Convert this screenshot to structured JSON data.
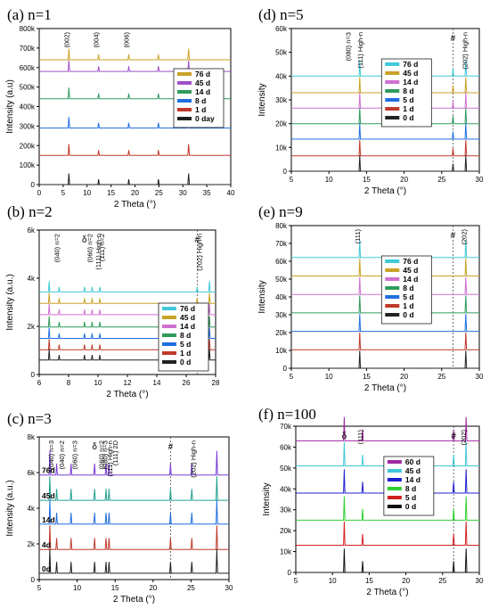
{
  "chart_data": [
    {
      "id": "a",
      "type": "line",
      "title": "(a) n=1",
      "xlabel": "2 Theta (°)",
      "ylabel": "Intensity (a.u)",
      "xlim": [
        0,
        40
      ],
      "ylim": [
        0,
        800000
      ],
      "xticks": [
        "0",
        "5",
        "10",
        "15",
        "20",
        "25",
        "30",
        "35",
        "40"
      ],
      "yticks": [
        "0",
        "100k",
        "200k",
        "300k",
        "400k",
        "500k",
        "600k",
        "700k",
        "800k"
      ],
      "peaks": [
        6.2,
        12.4,
        18.7,
        24.9,
        31.2
      ],
      "series": [
        {
          "name": "76 d",
          "color": "#c9a227",
          "baseline": 640000
        },
        {
          "name": "45 d",
          "color": "#a050c8",
          "baseline": 580000
        },
        {
          "name": "14 d",
          "color": "#2f9a5c",
          "baseline": 440000
        },
        {
          "name": "8 d",
          "color": "#1f6fe0",
          "baseline": 290000
        },
        {
          "name": "1 d",
          "color": "#c0392b",
          "baseline": 150000
        },
        {
          "name": "0 day",
          "color": "#222222",
          "baseline": 0
        }
      ],
      "annotations": [
        {
          "text": "(002)",
          "x": 6.2,
          "rot": true
        },
        {
          "text": "(004)",
          "x": 12.4,
          "rot": true
        },
        {
          "text": "(006)",
          "x": 18.7,
          "rot": true
        }
      ],
      "legend": "right"
    },
    {
      "id": "d",
      "type": "line",
      "title": "(d) n=5",
      "xlabel": "2 Theta (°)",
      "ylabel": "Intensity",
      "xlim": [
        5,
        30
      ],
      "ylim": [
        0,
        60000
      ],
      "xticks": [
        "5",
        "10",
        "15",
        "20",
        "25",
        "30"
      ],
      "yticks": [
        "0",
        "10k",
        "20k",
        "30k",
        "40k",
        "50k",
        "60k"
      ],
      "peaks": [
        14.1,
        26.5,
        28.2
      ],
      "series": [
        {
          "name": "76 d",
          "color": "#3fc8d8",
          "baseline": 40000
        },
        {
          "name": "45 d",
          "color": "#c9a227",
          "baseline": 33000
        },
        {
          "name": "14 d",
          "color": "#d070d0",
          "baseline": 26500
        },
        {
          "name": "8 d",
          "color": "#2f9a5c",
          "baseline": 20000
        },
        {
          "name": "5 d",
          "color": "#1f6fe0",
          "baseline": 13500
        },
        {
          "name": "1 d",
          "color": "#c0392b",
          "baseline": 6500
        },
        {
          "name": "0 d",
          "color": "#222222",
          "baseline": 0
        }
      ],
      "annotations": [
        {
          "text": "(080) n=3",
          "x": 12.9,
          "rot": true,
          "color": "#d02020"
        },
        {
          "text": "(111) High-n",
          "x": 14.5,
          "rot": true
        },
        {
          "text": "#",
          "x": 26.5
        },
        {
          "text": "(202) High-n",
          "x": 28.4,
          "rot": true
        }
      ],
      "legend": "left"
    },
    {
      "id": "b",
      "type": "line",
      "title": "(b) n=2",
      "xlabel": "2 Theta (°)",
      "ylabel": "Intensity (a.u.)",
      "xlim": [
        6,
        29
      ],
      "ylim": [
        0,
        7000
      ],
      "xticks": [
        "6",
        "8",
        "10",
        "12",
        "14",
        "26",
        "28"
      ],
      "yticks": [
        "0",
        "2k",
        "4k",
        "6k"
      ],
      "peaks": [
        7.3,
        8.6,
        11.9,
        12.9,
        13.9,
        26.6,
        28.2
      ],
      "series": [
        {
          "name": "76 d",
          "color": "#3fc8d8",
          "baseline": 4000
        },
        {
          "name": "45 d",
          "color": "#c9a227",
          "baseline": 3450
        },
        {
          "name": "14 d",
          "color": "#d070d0",
          "baseline": 2900
        },
        {
          "name": "8 d",
          "color": "#2f9a5c",
          "baseline": 2300
        },
        {
          "name": "5 d",
          "color": "#1f6fe0",
          "baseline": 1750
        },
        {
          "name": "1 d",
          "color": "#c0392b",
          "baseline": 1200
        },
        {
          "name": "0 d",
          "color": "#222222",
          "baseline": 700
        }
      ],
      "annotations": [
        {
          "text": "(040) n=2",
          "x": 8.6,
          "rot": true,
          "color": "#1f6fe0"
        },
        {
          "text": "δ",
          "x": 11.9
        },
        {
          "text": "(060) n=2",
          "x": 12.9,
          "rot": true,
          "color": "#1f6fe0"
        },
        {
          "text": "(111) High-n",
          "x": 14.0,
          "rot": true
        },
        {
          "text": "(111) n=2",
          "x": 14.5,
          "rot": true,
          "color": "#1f6fe0"
        },
        {
          "text": "#",
          "x": 26.6
        },
        {
          "text": "(202) High-n",
          "x": 27.2,
          "rot": true
        }
      ],
      "legend": "right"
    },
    {
      "id": "e",
      "type": "line",
      "title": "(e) n=9",
      "xlabel": "2 Theta (°)",
      "ylabel": "Intensity",
      "xlim": [
        5,
        30
      ],
      "ylim": [
        0,
        85000
      ],
      "xticks": [
        "5",
        "10",
        "15",
        "20",
        "25",
        "30"
      ],
      "yticks": [
        "0",
        "10k",
        "20k",
        "30k",
        "40k",
        "50k",
        "60k",
        "70k",
        "80k"
      ],
      "peaks": [
        14.1,
        28.2
      ],
      "series": [
        {
          "name": "76 d",
          "color": "#3fc8d8",
          "baseline": 66000
        },
        {
          "name": "45 d",
          "color": "#c9a227",
          "baseline": 55000
        },
        {
          "name": "14 d",
          "color": "#d070d0",
          "baseline": 44000
        },
        {
          "name": "8 d",
          "color": "#2f9a5c",
          "baseline": 33000
        },
        {
          "name": "5 d",
          "color": "#1f6fe0",
          "baseline": 22000
        },
        {
          "name": "1 d",
          "color": "#c0392b",
          "baseline": 11000
        },
        {
          "name": "0 d",
          "color": "#222222",
          "baseline": 0
        }
      ],
      "annotations": [
        {
          "text": "(111)",
          "x": 14.1,
          "rot": true
        },
        {
          "text": "#",
          "x": 26.5
        },
        {
          "text": "(202)",
          "x": 28.3,
          "rot": true
        }
      ],
      "legend": "left"
    },
    {
      "id": "c",
      "type": "line",
      "title": "(c) n=3",
      "xlabel": "2 Theta (°)",
      "ylabel": "Intensity (a.u.)",
      "xlim": [
        5,
        30
      ],
      "ylim": [
        0,
        9000
      ],
      "xticks": [
        "5",
        "10",
        "15",
        "20",
        "25",
        "30"
      ],
      "yticks": [
        "0",
        "2k",
        "4k",
        "6k",
        "8k"
      ],
      "peaks": [
        6.4,
        7.3,
        9.2,
        12.3,
        13.8,
        14.2,
        22.3,
        25.1,
        28.4
      ],
      "series": [
        {
          "name": "76d",
          "color": "#7a3fd8",
          "baseline": 6600
        },
        {
          "name": "45d",
          "color": "#20a090",
          "baseline": 5000
        },
        {
          "name": "14d",
          "color": "#1f6fe0",
          "baseline": 3500
        },
        {
          "name": "4d",
          "color": "#c0392b",
          "baseline": 1900
        },
        {
          "name": "0d",
          "color": "#222222",
          "baseline": 400
        }
      ],
      "annotations": [
        {
          "text": "(040) n=3",
          "x": 6.9,
          "rot": true,
          "color": "#d06040"
        },
        {
          "text": "(040) n=2",
          "x": 8.3,
          "rot": true,
          "color": "#1f6fe0"
        },
        {
          "text": "(060) n=3",
          "x": 10.0,
          "rot": true,
          "color": "#d06040"
        },
        {
          "text": "δ",
          "x": 12.3
        },
        {
          "text": "(060) n=2",
          "x": 13.5,
          "rot": true,
          "color": "#1f6fe0"
        },
        {
          "text": "(080) n=3",
          "x": 14.0,
          "rot": true,
          "color": "#d06040"
        },
        {
          "text": "(111) High-n",
          "x": 14.6,
          "rot": true
        },
        {
          "text": "(111) 2D",
          "x": 15.3,
          "rot": true
        },
        {
          "text": "#",
          "x": 22.3
        },
        {
          "text": "(202) High-n",
          "x": 25.6,
          "rot": true
        }
      ],
      "legend": "inline"
    },
    {
      "id": "f",
      "type": "line",
      "title": "(f) n=100",
      "xlabel": "2 Theta (°)",
      "ylabel": "Intensity",
      "xlim": [
        5,
        30
      ],
      "ylim": [
        0,
        70000
      ],
      "xticks": [
        "5",
        "10",
        "15",
        "20",
        "25",
        "30"
      ],
      "yticks": [
        "0",
        "10k",
        "20k",
        "30k",
        "40k",
        "50k",
        "60k",
        "70k"
      ],
      "peaks": [
        11.6,
        14.1,
        26.5,
        28.2
      ],
      "series": [
        {
          "name": "60 d",
          "color": "#a028a0",
          "baseline": 63000
        },
        {
          "name": "45 d",
          "color": "#3fc8d8",
          "baseline": 51000
        },
        {
          "name": "14 d",
          "color": "#1f1fd0",
          "baseline": 38000
        },
        {
          "name": "8 d",
          "color": "#30d030",
          "baseline": 25000
        },
        {
          "name": "5 d",
          "color": "#d02020",
          "baseline": 13000
        },
        {
          "name": "0 d",
          "color": "#111111",
          "baseline": 0
        }
      ],
      "annotations": [
        {
          "text": "δ",
          "x": 11.6
        },
        {
          "text": "(111)",
          "x": 14.1,
          "rot": true
        },
        {
          "text": "#",
          "x": 26.5
        },
        {
          "text": "(202)",
          "x": 28.2,
          "rot": true
        }
      ],
      "legend": "left"
    }
  ]
}
